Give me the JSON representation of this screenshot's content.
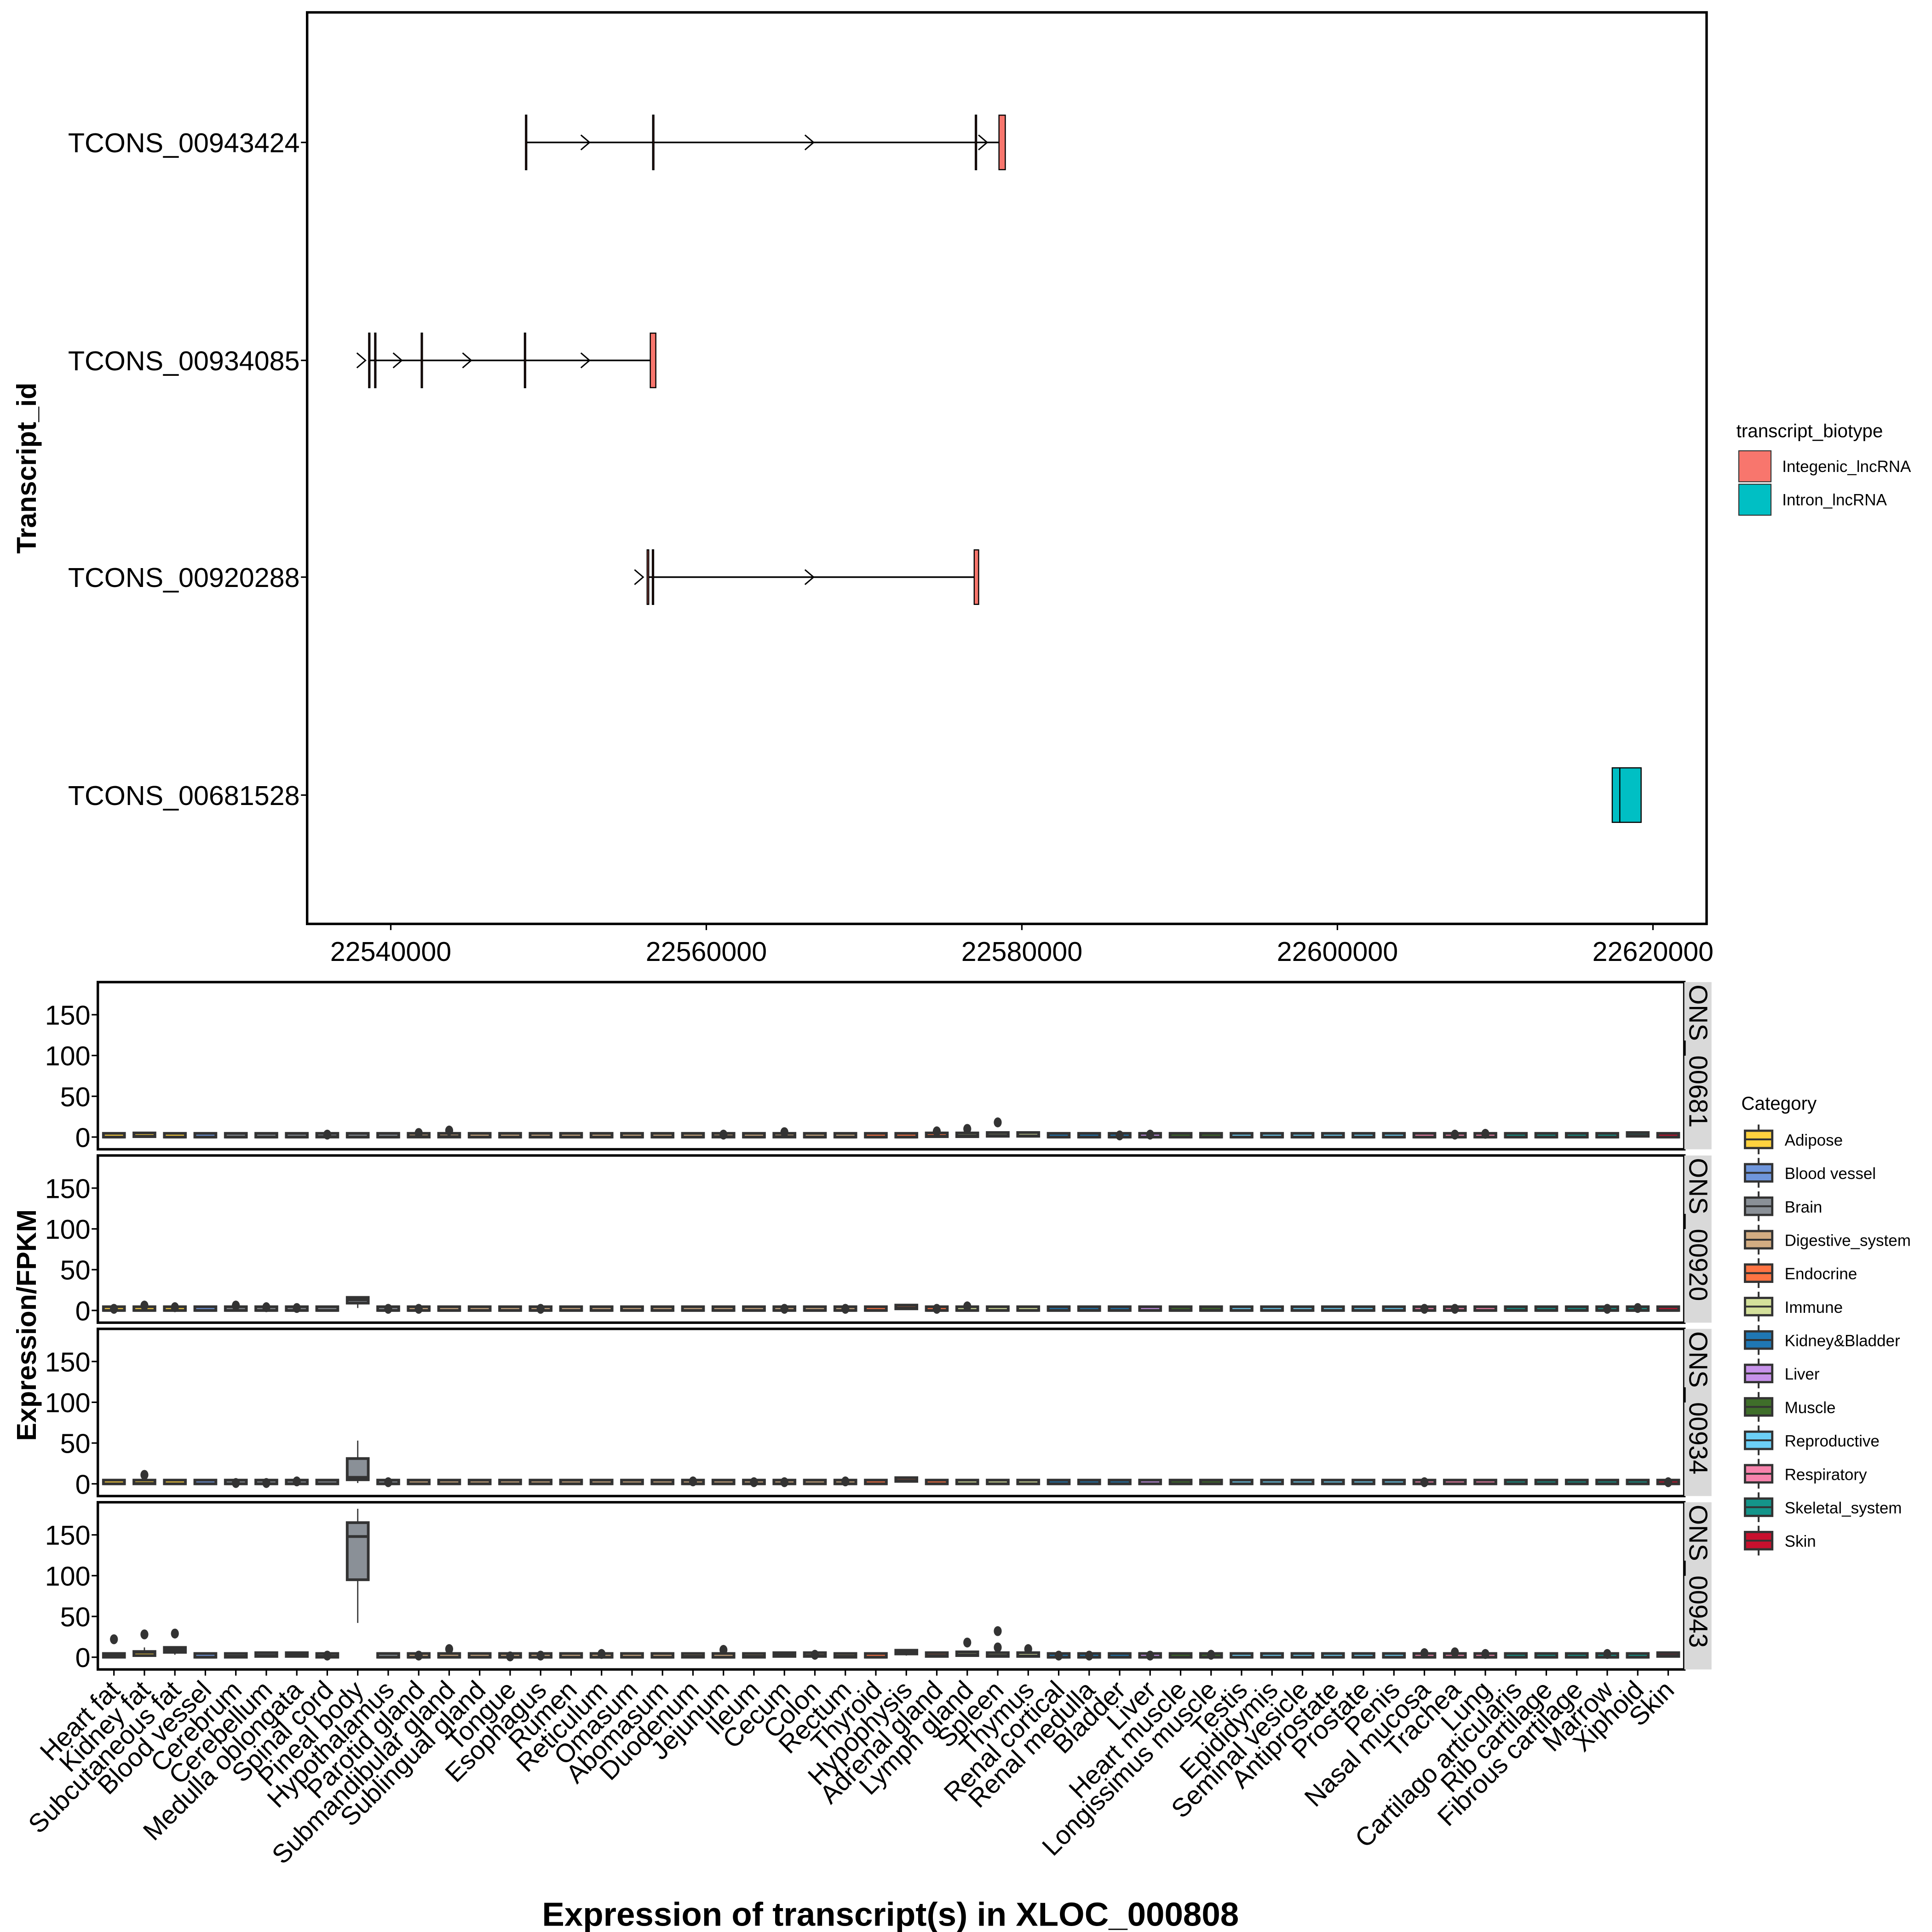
{
  "chart_data": [
    {
      "type": "gene_structure",
      "title": "",
      "xlabel": "",
      "ylabel": "Transcript_id",
      "x_ticks": [
        22540000,
        22560000,
        22580000,
        22600000,
        22620000
      ],
      "x_tick_labels": [
        "22540000",
        "22560000",
        "22580000",
        "22600000",
        "22620000"
      ],
      "xlim": [
        22534700,
        22623400
      ],
      "legend": {
        "title": "transcript_biotype",
        "placement": "right",
        "items": [
          {
            "label": "Integenic_lncRNA",
            "color": "#F8766D"
          },
          {
            "label": "Intron_lncRNA",
            "color": "#00BFC4"
          }
        ]
      },
      "transcripts": [
        {
          "id": "TCONS_00943424",
          "biotype": "Integenic_lncRNA",
          "strand": "+",
          "exons": [
            [
              22548540,
              22548600
            ],
            [
              22556600,
              22556660
            ],
            [
              22577050,
              22577130
            ],
            [
              22578550,
              22578950
            ]
          ],
          "arrows": [
            22552600,
            22566800,
            22577800
          ]
        },
        {
          "id": "TCONS_00934085",
          "biotype": "Integenic_lncRNA",
          "strand": "+",
          "exons": [
            [
              22538600,
              22538660
            ],
            [
              22538980,
              22539040
            ],
            [
              22541930,
              22541990
            ],
            [
              22548470,
              22548530
            ],
            [
              22556450,
              22556800
            ]
          ],
          "arrows": [
            22538400,
            22540700,
            22545100,
            22552600
          ]
        },
        {
          "id": "TCONS_00920288",
          "biotype": "Integenic_lncRNA",
          "strand": "+",
          "exons": [
            [
              22556250,
              22556350
            ],
            [
              22556580,
              22556660
            ],
            [
              22576980,
              22577260
            ]
          ],
          "arrows": [
            22556000,
            22566800
          ]
        },
        {
          "id": "TCONS_00681528",
          "biotype": "Intron_lncRNA",
          "strand": "+",
          "exons": [
            [
              22617420,
              22617900
            ],
            [
              22617900,
              22619250
            ]
          ],
          "arrows": []
        }
      ]
    },
    {
      "type": "boxplot",
      "title": "",
      "xlabel": "Expression of transcript(s) in XLOC_000808",
      "ylabel": "Expression/FPKM",
      "ylim": [
        -15,
        190
      ],
      "y_ticks": [
        0,
        50,
        100,
        150
      ],
      "y_tick_labels": [
        "0",
        "50",
        "100",
        "150"
      ],
      "legend": {
        "title": "Category",
        "placement": "right",
        "items": [
          {
            "label": "Adipose",
            "color": "#FFD23F"
          },
          {
            "label": "Blood vessel",
            "color": "#6F96DC"
          },
          {
            "label": "Brain",
            "color": "#8A9097"
          },
          {
            "label": "Digestive_system",
            "color": "#D2AC82"
          },
          {
            "label": "Endocrine",
            "color": "#FF7443"
          },
          {
            "label": "Immune",
            "color": "#D4E09B"
          },
          {
            "label": "Kidney&Bladder",
            "color": "#1F77B4"
          },
          {
            "label": "Liver",
            "color": "#C792EA"
          },
          {
            "label": "Muscle",
            "color": "#3F6E2A"
          },
          {
            "label": "Reproductive",
            "color": "#6CCFF6"
          },
          {
            "label": "Respiratory",
            "color": "#F783AC"
          },
          {
            "label": "Skeletal_system",
            "color": "#14958A"
          },
          {
            "label": "Skin",
            "color": "#C8102E"
          }
        ]
      },
      "categories": [
        "Heart fat",
        "Kidney fat",
        "Subcutaneous fat",
        "Blood vessel",
        "Cerebrum",
        "Cerebellum",
        "Medulla oblongata",
        "Spinal cord",
        "Pineal body",
        "Hypothalamus",
        "Parotid gland",
        "Submandibular gland",
        "Sublingual gland",
        "Tongue",
        "Esophagus",
        "Rumen",
        "Reticulum",
        "Omasum",
        "Abomasum",
        "Duodenum",
        "Jejunum",
        "Ileum",
        "Cecum",
        "Colon",
        "Rectum",
        "Thyroid",
        "Hypophysis",
        "Adrenal gland",
        "Lymph gland",
        "Spleen",
        "Thymus",
        "Renal cortical",
        "Renal medulla",
        "Bladder",
        "Liver",
        "Heart muscle",
        "Longissimus muscle",
        "Testis",
        "Epididymis",
        "Seminal vesicle",
        "Antiprostate",
        "Prostate",
        "Penis",
        "Nasal mucosa",
        "Trachea",
        "Lung",
        "Cartilago articularis",
        "Rib cartilage",
        "Fibrous cartilage",
        "Marrow",
        "Xiphoid",
        "Skin"
      ],
      "category_group": [
        "Adipose",
        "Adipose",
        "Adipose",
        "Blood vessel",
        "Brain",
        "Brain",
        "Brain",
        "Brain",
        "Brain",
        "Brain",
        "Digestive_system",
        "Digestive_system",
        "Digestive_system",
        "Digestive_system",
        "Digestive_system",
        "Digestive_system",
        "Digestive_system",
        "Digestive_system",
        "Digestive_system",
        "Digestive_system",
        "Digestive_system",
        "Digestive_system",
        "Digestive_system",
        "Digestive_system",
        "Digestive_system",
        "Endocrine",
        "Endocrine",
        "Endocrine",
        "Immune",
        "Immune",
        "Immune",
        "Kidney&Bladder",
        "Kidney&Bladder",
        "Kidney&Bladder",
        "Liver",
        "Muscle",
        "Muscle",
        "Reproductive",
        "Reproductive",
        "Reproductive",
        "Reproductive",
        "Reproductive",
        "Reproductive",
        "Respiratory",
        "Respiratory",
        "Respiratory",
        "Skeletal_system",
        "Skeletal_system",
        "Skeletal_system",
        "Skeletal_system",
        "Skeletal_system",
        "Skin"
      ],
      "facets": [
        {
          "strip_label": "ONS_00681",
          "boxes": {
            "default": [
              0,
              0,
              0,
              0.5,
              1
            ],
            "overrides": {
              "Kidney fat": [
                0,
                0.5,
                1,
                2,
                3
              ],
              "Spinal cord": [
                0,
                0,
                0.5,
                1,
                1.5
              ],
              "Parotid gland": [
                0,
                0,
                0.5,
                1,
                1.5
              ],
              "Submandibular gland": [
                0,
                0,
                0.5,
                1,
                1.5
              ],
              "Jejunum": [
                0,
                0,
                0.5,
                1,
                1.5
              ],
              "Cecum": [
                0,
                0,
                0.5,
                1,
                1.5
              ],
              "Adrenal gland": [
                0,
                0.5,
                1,
                2,
                3
              ],
              "Lymph gland": [
                0,
                0.5,
                1.5,
                3,
                5
              ],
              "Spleen": [
                0,
                1,
                2,
                3,
                4
              ],
              "Thymus": [
                0,
                1,
                1.5,
                2,
                3
              ],
              "Xiphoid": [
                0,
                1,
                2,
                4,
                5
              ]
            }
          },
          "outliers": {
            "Spinal cord": [
              3
            ],
            "Parotid gland": [
              5
            ],
            "Submandibular gland": [
              8
            ],
            "Jejunum": [
              3
            ],
            "Cecum": [
              6
            ],
            "Adrenal gland": [
              7
            ],
            "Lymph gland": [
              10
            ],
            "Spleen": [
              18
            ],
            "Bladder": [
              2
            ],
            "Liver": [
              3
            ],
            "Trachea": [
              3
            ],
            "Lung": [
              4
            ]
          }
        },
        {
          "strip_label": "ONS_00920",
          "boxes": {
            "default": [
              0,
              0,
              0,
              0.5,
              1
            ],
            "overrides": {
              "Pineal body": [
                3,
                9,
                13,
                16,
                17
              ],
              "Hypophysis": [
                1,
                2,
                3,
                4,
                4
              ]
            }
          },
          "outliers": {
            "Heart fat": [
              2
            ],
            "Kidney fat": [
              6
            ],
            "Subcutaneous fat": [
              4
            ],
            "Cerebrum": [
              6
            ],
            "Cerebellum": [
              4
            ],
            "Medulla oblongata": [
              3
            ],
            "Hypothalamus": [
              2
            ],
            "Parotid gland": [
              2
            ],
            "Esophagus": [
              2
            ],
            "Cecum": [
              2
            ],
            "Rectum": [
              2
            ],
            "Adrenal gland": [
              2
            ],
            "Lymph gland": [
              5
            ],
            "Nasal mucosa": [
              2
            ],
            "Trachea": [
              2
            ],
            "Marrow": [
              2
            ],
            "Xiphoid": [
              3
            ]
          }
        },
        {
          "strip_label": "ONS_00934",
          "boxes": {
            "default": [
              0,
              0,
              0,
              0.5,
              1
            ],
            "overrides": {
              "Kidney fat": [
                0,
                0,
                0.5,
                1,
                2
              ],
              "Pineal body": [
                1,
                5,
                8,
                31,
                53
              ],
              "Hypophysis": [
                2,
                3,
                4,
                5,
                5
              ]
            }
          },
          "outliers": {
            "Kidney fat": [
              11
            ],
            "Cerebrum": [
              1
            ],
            "Cerebellum": [
              1
            ],
            "Medulla oblongata": [
              3
            ],
            "Hypothalamus": [
              2
            ],
            "Duodenum": [
              3
            ],
            "Ileum": [
              2
            ],
            "Cecum": [
              2
            ],
            "Rectum": [
              3
            ],
            "Nasal mucosa": [
              2
            ],
            "Skin": [
              2
            ]
          }
        },
        {
          "strip_label": "ONS_00943",
          "boxes": {
            "default": [
              0,
              0,
              0,
              0.5,
              1
            ],
            "overrides": {
              "Heart fat": [
                0,
                0,
                2,
                4,
                5
              ],
              "Kidney fat": [
                1,
                2,
                6,
                7,
                12
              ],
              "Subcutaneous fat": [
                3,
                6,
                9,
                12,
                12
              ],
              "Cerebrum": [
                0,
                0,
                1,
                2,
                2
              ],
              "Cerebellum": [
                0,
                1,
                2,
                3,
                3
              ],
              "Medulla oblongata": [
                0,
                1,
                3,
                4,
                5
              ],
              "Spinal cord": [
                0,
                0,
                1,
                2,
                2
              ],
              "Pineal body": [
                42,
                95,
                148,
                165,
                182
              ],
              "Duodenum": [
                0,
                0,
                1,
                3,
                4
              ],
              "Ileum": [
                0,
                0,
                1,
                2,
                3
              ],
              "Cecum": [
                0,
                1,
                3,
                5,
                6
              ],
              "Colon": [
                0,
                1,
                2,
                4,
                5
              ],
              "Rectum": [
                0,
                0,
                1,
                2,
                3
              ],
              "Hypophysis": [
                2,
                4,
                6,
                8,
                10
              ],
              "Adrenal gland": [
                0,
                1,
                2,
                4,
                5
              ],
              "Lymph gland": [
                1,
                2,
                3,
                5,
                6
              ],
              "Spleen": [
                0,
                1,
                2,
                5,
                5
              ],
              "Thymus": [
                0,
                1,
                1.5,
                3,
                3
              ],
              "Skin": [
                0,
                1,
                2,
                4,
                6
              ]
            }
          },
          "outliers": {
            "Heart fat": [
              22
            ],
            "Kidney fat": [
              28
            ],
            "Subcutaneous fat": [
              29
            ],
            "Spinal cord": [
              2
            ],
            "Parotid gland": [
              2
            ],
            "Submandibular gland": [
              10
            ],
            "Tongue": [
              1
            ],
            "Esophagus": [
              2
            ],
            "Reticulum": [
              4
            ],
            "Jejunum": [
              9
            ],
            "Colon": [
              3
            ],
            "Lymph gland": [
              18
            ],
            "Spleen": [
              12,
              32
            ],
            "Thymus": [
              10
            ],
            "Renal cortical": [
              2
            ],
            "Renal medulla": [
              2
            ],
            "Liver": [
              2
            ],
            "Longissimus muscle": [
              3
            ],
            "Nasal mucosa": [
              5
            ],
            "Trachea": [
              6
            ],
            "Lung": [
              4
            ],
            "Marrow": [
              4
            ]
          }
        }
      ]
    }
  ]
}
